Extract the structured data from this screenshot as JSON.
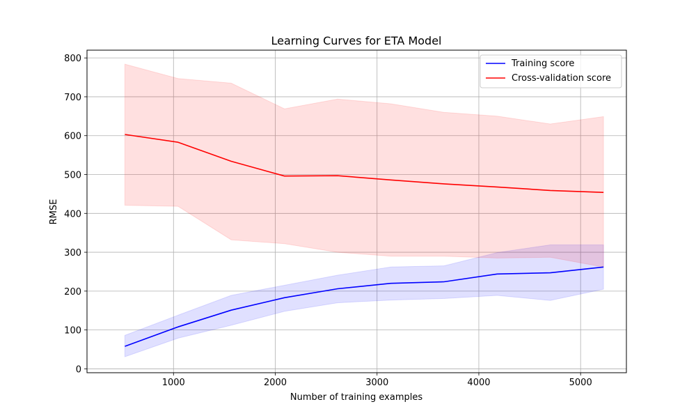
{
  "chart_data": {
    "type": "line",
    "title": "Learning Curves for ETA Model",
    "xlabel": "Number of training examples",
    "ylabel": "RMSE",
    "xlim": [
      150,
      5450
    ],
    "ylim": [
      -10,
      820
    ],
    "xticks": [
      1000,
      2000,
      3000,
      4000,
      5000
    ],
    "yticks": [
      0,
      100,
      200,
      300,
      400,
      500,
      600,
      700,
      800
    ],
    "grid": true,
    "legend_position": "top-right",
    "x": [
      522,
      1045,
      1567,
      2090,
      2612,
      3135,
      3657,
      4180,
      4702,
      5225
    ],
    "series": [
      {
        "name": "Training score",
        "color": "#0000ff",
        "band_color": "#0000ff",
        "values": [
          58,
          108,
          151,
          183,
          206,
          220,
          224,
          244,
          247,
          262
        ],
        "lower": [
          31,
          79,
          112,
          148,
          170,
          177,
          181,
          189,
          176,
          205
        ],
        "upper": [
          86,
          138,
          189,
          215,
          241,
          262,
          265,
          299,
          319,
          319
        ]
      },
      {
        "name": "Cross-validation score",
        "color": "#ff0000",
        "band_color": "#ff0000",
        "values": [
          603,
          583,
          534,
          496,
          497,
          486,
          476,
          468,
          459,
          454
        ],
        "lower": [
          421,
          418,
          332,
          322,
          300,
          290,
          290,
          285,
          287,
          262
        ],
        "upper": [
          784,
          747,
          735,
          669,
          694,
          682,
          660,
          650,
          630,
          649
        ]
      }
    ]
  }
}
